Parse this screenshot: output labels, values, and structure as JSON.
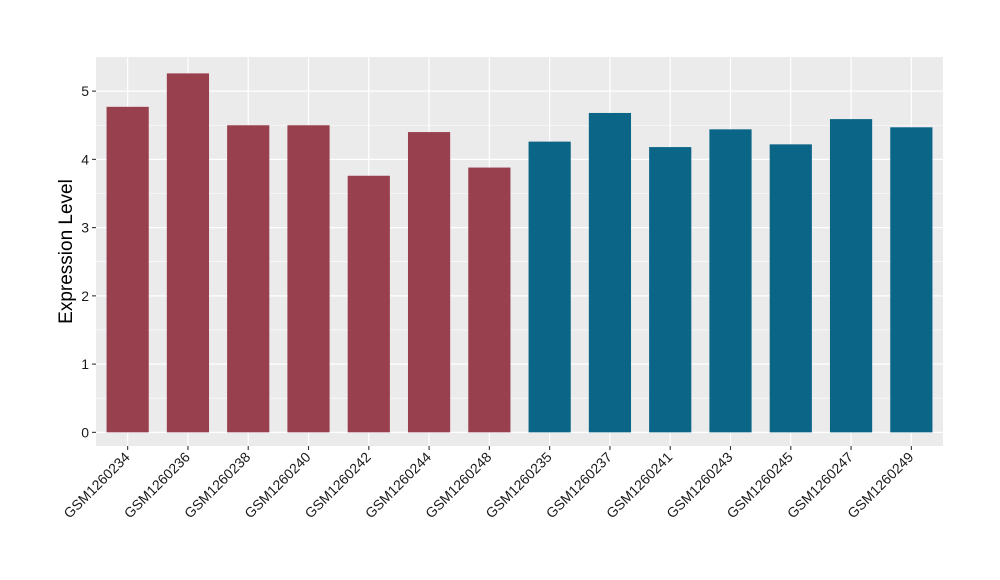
{
  "chart_data": {
    "type": "bar",
    "title": "",
    "xlabel": "",
    "ylabel": "Expression Level",
    "ylim": [
      -0.2,
      5.5
    ],
    "yticks": [
      0,
      1,
      2,
      3,
      4,
      5
    ],
    "grid": true,
    "legend": "none",
    "categories": [
      "GSM1260234",
      "GSM1260236",
      "GSM1260238",
      "GSM1260240",
      "GSM1260242",
      "GSM1260244",
      "GSM1260248",
      "GSM1260235",
      "GSM1260237",
      "GSM1260241",
      "GSM1260243",
      "GSM1260245",
      "GSM1260247",
      "GSM1260249"
    ],
    "values": [
      4.77,
      5.26,
      4.5,
      4.5,
      3.76,
      4.4,
      3.88,
      4.26,
      4.68,
      4.18,
      4.44,
      4.22,
      4.59,
      4.47
    ],
    "bar_colors": [
      "#99404f",
      "#99404f",
      "#99404f",
      "#99404f",
      "#99404f",
      "#99404f",
      "#99404f",
      "#0b6587",
      "#0b6587",
      "#0b6587",
      "#0b6587",
      "#0b6587",
      "#0b6587",
      "#0b6587"
    ],
    "panel_background": "#ebebeb",
    "grid_color": "#ffffff"
  }
}
